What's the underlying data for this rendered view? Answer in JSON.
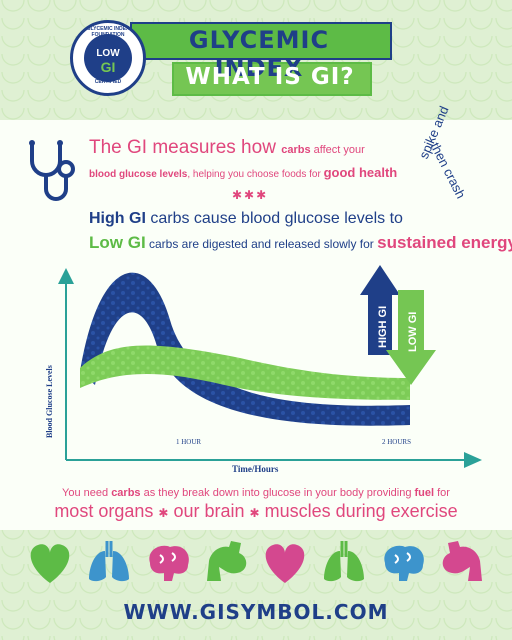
{
  "header": {
    "title": "GLYCEMIC INDEX",
    "subtitle": "WHAT IS GI?",
    "badge_top": "GLYCEMIC INDEX FOUNDATION",
    "badge_low": "LOW",
    "badge_gi": "GI",
    "badge_bottom": "CERTIFIED"
  },
  "intro": {
    "lead": "The GI measures how ",
    "carbs": "carbs",
    "lead_end": " affect your",
    "bgl": "blood glucose levels",
    "helping": ", helping you choose foods for ",
    "good_health": "good health",
    "dots": "✱✱✱"
  },
  "high_line": {
    "high_gi": "High GI",
    "text": " carbs cause blood glucose levels to"
  },
  "low_line": {
    "low_gi": "Low GI",
    "text": " carbs are digested and released slowly for ",
    "sustained": "sustained energy"
  },
  "spike_note": {
    "line1": "spike and",
    "line2": "then crash"
  },
  "chart": {
    "ylabel": "Blood Glucose Levels",
    "xlabel": "Time/Hours",
    "tick1": "1 HOUR",
    "tick2": "2 HOURS",
    "high_label": "HIGH GI",
    "low_label": "LOW GI"
  },
  "bottom": {
    "lead": "You need ",
    "carbs": "carbs",
    "mid": " as they break down into glucose in your body providing ",
    "fuel": "fuel",
    "end": " for",
    "organs": "most organs",
    "brain": "our brain",
    "muscles": "muscles during exercise",
    "sep": "✱"
  },
  "icons": [
    "heart-icon",
    "lungs-icon",
    "brain-icon",
    "muscle-arm-icon",
    "heart-icon",
    "lungs-icon",
    "brain-icon",
    "muscle-arm-icon"
  ],
  "website": "WWW.GISYMBOL.COM",
  "colors": {
    "navy": "#1f3f88",
    "green": "#5dbb46",
    "pink": "#e0477d",
    "light_blue": "#3d94cc",
    "background": "#dff0d3"
  }
}
